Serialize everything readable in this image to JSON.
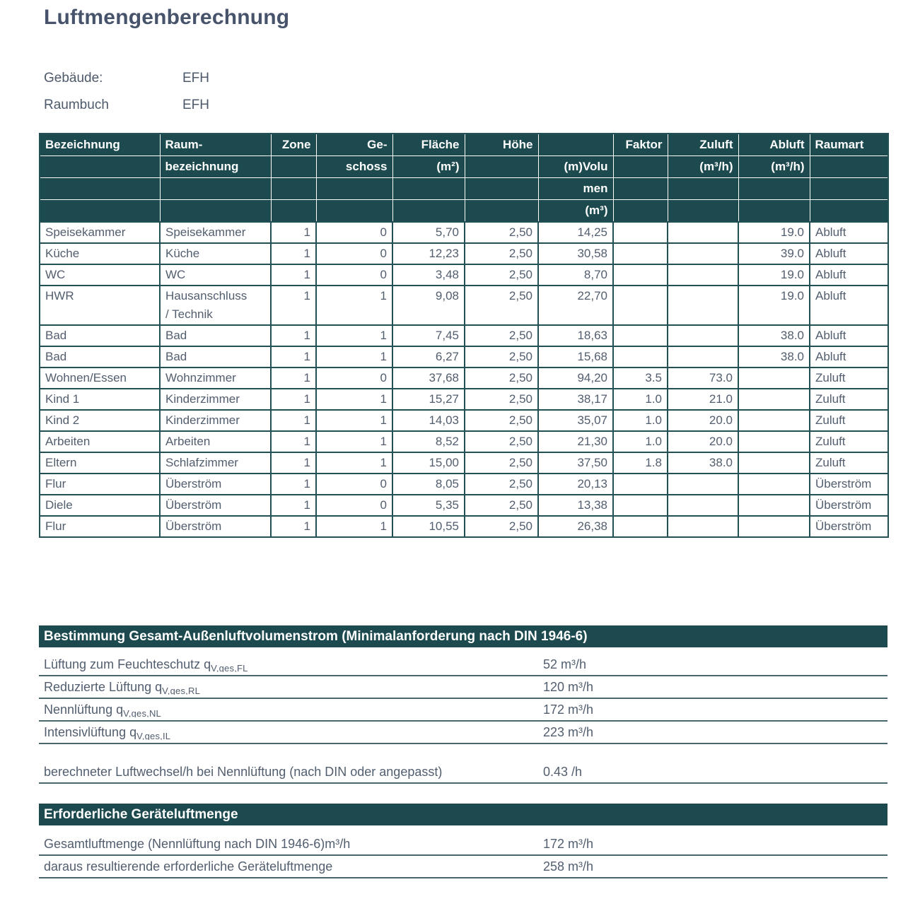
{
  "title": "Luftmengenberechnung",
  "meta": {
    "rows": [
      {
        "label": "Gebäude:",
        "value": "EFH"
      },
      {
        "label": "Raumbuch",
        "value": "EFH"
      }
    ]
  },
  "table": {
    "header_lines": [
      [
        "Bezeichnung",
        "Raum-",
        "Zone",
        "Ge-",
        "Fläche",
        "Höhe",
        "",
        "Faktor",
        "Zuluft",
        "Abluft",
        "Raumart"
      ],
      [
        "",
        "bezeichnung",
        "",
        "schoss",
        "(m²)",
        "",
        "(m)Volu",
        "",
        "(m³/h)",
        "(m³/h)",
        ""
      ],
      [
        "",
        "",
        "",
        "",
        "",
        "",
        "men",
        "",
        "",
        "",
        ""
      ],
      [
        "",
        "",
        "",
        "",
        "",
        "",
        "(m³)",
        "",
        "",
        "",
        ""
      ]
    ],
    "rows": [
      [
        "Speisekammer",
        "Speisekammer",
        "1",
        "0",
        "5,70",
        "2,50",
        "14,25",
        "",
        "",
        "19.0",
        "Abluft"
      ],
      [
        "Küche",
        "Küche",
        "1",
        "0",
        "12,23",
        "2,50",
        "30,58",
        "",
        "",
        "39.0",
        "Abluft"
      ],
      [
        "WC",
        "WC",
        "1",
        "0",
        "3,48",
        "2,50",
        "8,70",
        "",
        "",
        "19.0",
        "Abluft"
      ],
      [
        "HWR",
        "Hausanschluss\n/ Technik",
        "1",
        "1",
        "9,08",
        "2,50",
        "22,70",
        "",
        "",
        "19.0",
        "Abluft"
      ],
      [
        "Bad",
        "Bad",
        "1",
        "1",
        "7,45",
        "2,50",
        "18,63",
        "",
        "",
        "38.0",
        "Abluft"
      ],
      [
        "Bad",
        "Bad",
        "1",
        "1",
        "6,27",
        "2,50",
        "15,68",
        "",
        "",
        "38.0",
        "Abluft"
      ],
      [
        "Wohnen/Essen",
        "Wohnzimmer",
        "1",
        "0",
        "37,68",
        "2,50",
        "94,20",
        "3.5",
        "73.0",
        "",
        "Zuluft"
      ],
      [
        "Kind 1",
        "Kinderzimmer",
        "1",
        "1",
        "15,27",
        "2,50",
        "38,17",
        "1.0",
        "21.0",
        "",
        "Zuluft"
      ],
      [
        "Kind 2",
        "Kinderzimmer",
        "1",
        "1",
        "14,03",
        "2,50",
        "35,07",
        "1.0",
        "20.0",
        "",
        "Zuluft"
      ],
      [
        "Arbeiten",
        "Arbeiten",
        "1",
        "1",
        "8,52",
        "2,50",
        "21,30",
        "1.0",
        "20.0",
        "",
        "Zuluft"
      ],
      [
        "Eltern",
        "Schlafzimmer",
        "1",
        "1",
        "15,00",
        "2,50",
        "37,50",
        "1.8",
        "38.0",
        "",
        "Zuluft"
      ],
      [
        "Flur",
        "Überström",
        "1",
        "0",
        "8,05",
        "2,50",
        "20,13",
        "",
        "",
        "",
        "Überström"
      ],
      [
        "Diele",
        "Überström",
        "1",
        "0",
        "5,35",
        "2,50",
        "13,38",
        "",
        "",
        "",
        "Überström"
      ],
      [
        "Flur",
        "Überström",
        "1",
        "1",
        "10,55",
        "2,50",
        "26,38",
        "",
        "",
        "",
        "Überström"
      ]
    ]
  },
  "sections": [
    {
      "title": "Bestimmung Gesamt-Außenluftvolumenstrom (Minimalanforderung nach DIN 1946-6)",
      "rows": [
        {
          "label": "Lüftung zum Feuchteschutz q",
          "sub": "V,ges,FL",
          "value": "52 m³/h"
        },
        {
          "label": "Reduzierte Lüftung q",
          "sub": "V,ges,RL",
          "value": "120 m³/h"
        },
        {
          "label": "Nennlüftung q",
          "sub": "V,ges,NL",
          "value": "172 m³/h"
        },
        {
          "label": "Intensivlüftung q",
          "sub": "V,ges,IL",
          "value": "223 m³/h"
        }
      ],
      "note_row": {
        "label": "berechneter Luftwechsel/h bei Nennlüftung (nach DIN oder angepasst)",
        "value": "0.43 /h"
      }
    },
    {
      "title": "Erforderliche Geräteluftmenge",
      "rows": [
        {
          "label": "Gesamtluftmenge (Nennlüftung nach DIN 1946-6)m³/h",
          "value": "172 m³/h"
        },
        {
          "label": "daraus resultierende erforderliche Geräteluftmenge",
          "value": "258 m³/h"
        }
      ]
    }
  ],
  "colors": {
    "header_teal": "#1d4a4f",
    "border_teal": "#215055",
    "rule_teal": "#48666c",
    "body_text": "#525e6e",
    "title_text": "#47536b"
  }
}
